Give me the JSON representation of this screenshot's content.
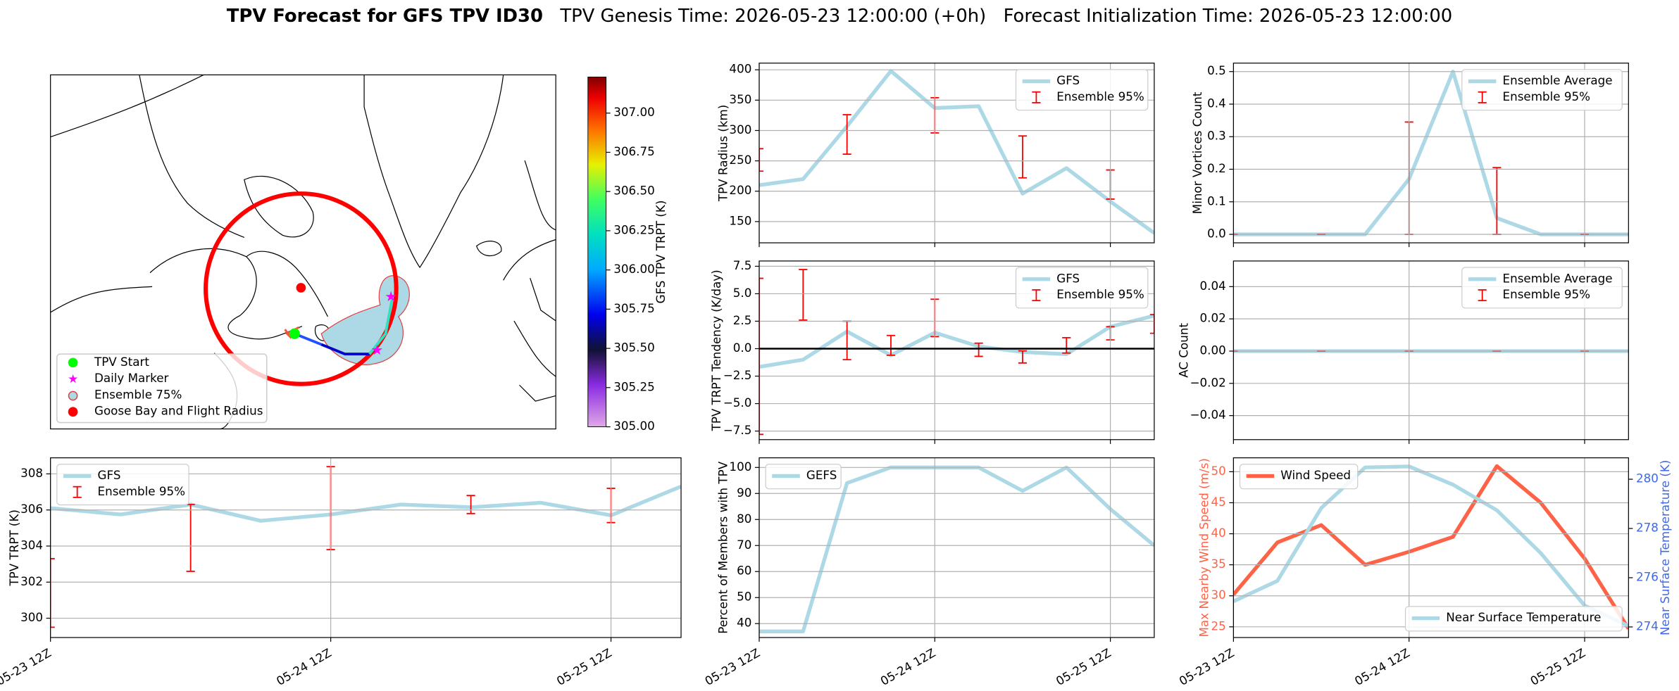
{
  "header": {
    "title": "TPV Forecast for GFS TPV ID30",
    "genesis": "TPV Genesis Time: 2026-05-23 12:00:00 (+0h)",
    "init": "Forecast Initialization Time: 2026-05-23 12:00:00"
  },
  "chart_data": [
    {
      "type": "map",
      "legend": [
        "TPV Start",
        "Daily Marker",
        "Ensemble 75%",
        "Goose Bay and Flight Radius"
      ],
      "colorbar": {
        "label": "GFS TPV TRPT (K)",
        "ylim": [
          305,
          307.23
        ],
        "yticks": [
          {
            "value": 305,
            "label": "305.00"
          },
          {
            "value": 305.25,
            "label": "305.25"
          },
          {
            "value": 305.5,
            "label": "305.50"
          },
          {
            "value": 305.75,
            "label": "305.75"
          },
          {
            "value": 306,
            "label": "306.00"
          },
          {
            "value": 306.25,
            "label": "306.25"
          },
          {
            "value": 306.5,
            "label": "306.50"
          },
          {
            "value": 306.75,
            "label": "306.75"
          },
          {
            "value": 307,
            "label": "307.00"
          }
        ]
      }
    },
    {
      "type": "line",
      "ylabel": "TPV TRPT (K)",
      "categories": [
        "05-23 12Z",
        null,
        null,
        null,
        "05-24 12Z",
        null,
        null,
        null,
        "05-25 12Z",
        null
      ],
      "series": [
        {
          "name": "GFS",
          "color": "#add8e6",
          "values": [
            306.1,
            305.75,
            306.3,
            305.4,
            305.75,
            306.3,
            306.15,
            306.4,
            305.7,
            307.3
          ]
        },
        {
          "name": "Ensemble 95%",
          "color": "#ff0000",
          "type": "errorbar",
          "lower": [
            299.5,
            null,
            302.6,
            null,
            303.8,
            null,
            305.8,
            null,
            305.3,
            null
          ],
          "upper": [
            303.3,
            null,
            306.3,
            null,
            308.4,
            null,
            306.8,
            null,
            307.2,
            null
          ]
        }
      ],
      "ylim": [
        298.93,
        308.89
      ],
      "yticks": [
        300,
        302,
        304,
        306,
        308
      ],
      "grid": true,
      "legend": "upper left"
    },
    {
      "type": "line",
      "ylabel": "TPV Radius (km)",
      "categories": [
        "05-23 12Z",
        null,
        null,
        null,
        "05-24 12Z",
        null,
        null,
        null,
        "05-25 12Z",
        null
      ],
      "series": [
        {
          "name": "GFS",
          "color": "#add8e6",
          "values": [
            210,
            220,
            307,
            398,
            337,
            340,
            196,
            238,
            183,
            131
          ]
        },
        {
          "name": "Ensemble 95%",
          "color": "#ff0000",
          "type": "errorbar",
          "lower": [
            233,
            null,
            261,
            null,
            296,
            null,
            222,
            null,
            187,
            null
          ],
          "upper": [
            270,
            null,
            326,
            null,
            354,
            null,
            291,
            null,
            235,
            null
          ]
        }
      ],
      "ylim": [
        115,
        411
      ],
      "yticks": [
        150,
        200,
        250,
        300,
        350,
        400
      ],
      "grid": true,
      "legend": "upper right"
    },
    {
      "type": "line",
      "ylabel": "TPV TRPT Tendency (K/day)",
      "categories": [
        "05-23 12Z",
        null,
        null,
        null,
        "05-24 12Z",
        null,
        null,
        null,
        "05-25 12Z",
        null
      ],
      "series": [
        {
          "name": "GFS",
          "color": "#add8e6",
          "values": [
            -1.66,
            -1.0,
            1.56,
            -0.6,
            1.46,
            0.2,
            -0.3,
            -0.5,
            2.0,
            3.0
          ]
        },
        {
          "name": "Ensemble 95%",
          "color": "#ff0000",
          "type": "errorbar",
          "lower": [
            -7.8,
            2.6,
            -1.0,
            -0.6,
            1.1,
            -0.7,
            -1.3,
            -0.4,
            0.8,
            1.4
          ],
          "upper": [
            6.4,
            7.2,
            2.5,
            1.2,
            4.5,
            0.5,
            -0.2,
            1.0,
            2.0,
            3.1
          ]
        }
      ],
      "hline": 0,
      "ylim": [
        -8.28,
        7.98
      ],
      "yticks": [
        {
          "value": -7.5,
          "label": "−7.5"
        },
        {
          "value": -5,
          "label": "−5.0"
        },
        {
          "value": -2.5,
          "label": "−2.5"
        },
        {
          "value": 0,
          "label": "0.0"
        },
        2.5,
        {
          "value": 5,
          "label": "5.0"
        },
        7.5
      ],
      "grid": true,
      "legend": "upper right"
    },
    {
      "type": "line",
      "ylabel": "Percent of Members with TPV",
      "categories": [
        "05-23 12Z",
        null,
        null,
        null,
        "05-24 12Z",
        null,
        null,
        null,
        "05-25 12Z",
        null
      ],
      "series": [
        {
          "name": "GEFS",
          "color": "#add8e6",
          "values": [
            37,
            37,
            94,
            100,
            100,
            100,
            91,
            100,
            84,
            70
          ]
        }
      ],
      "ylim": [
        34.65,
        103.7
      ],
      "yticks": [
        40,
        50,
        60,
        70,
        80,
        90,
        100
      ],
      "grid": true,
      "legend": "upper left"
    },
    {
      "type": "line",
      "ylabel": "Minor Vortices Count",
      "categories": [
        "05-23 12Z",
        null,
        null,
        null,
        "05-24 12Z",
        null,
        null,
        null,
        "05-25 12Z",
        null
      ],
      "series": [
        {
          "name": "Ensemble Average",
          "color": "#add8e6",
          "values": [
            0,
            0,
            0,
            0,
            0.17,
            0.5,
            0.05,
            0,
            0,
            0
          ]
        },
        {
          "name": "Ensemble 95%",
          "color": "#ff0000",
          "type": "errorbar",
          "lower": [
            0,
            null,
            0,
            null,
            0,
            null,
            0,
            null,
            0,
            null
          ],
          "upper": [
            0,
            null,
            0,
            null,
            0.345,
            null,
            0.205,
            null,
            0,
            null
          ]
        }
      ],
      "ylim": [
        -0.026,
        0.526
      ],
      "yticks": [
        {
          "value": 0,
          "label": "0.0"
        },
        0.1,
        0.2,
        0.3,
        0.4,
        0.5
      ],
      "grid": true,
      "legend": "upper right"
    },
    {
      "type": "line",
      "ylabel": "AC Count",
      "categories": [
        "05-23 12Z",
        null,
        null,
        null,
        "05-24 12Z",
        null,
        null,
        null,
        "05-25 12Z",
        null
      ],
      "series": [
        {
          "name": "Ensemble Average",
          "color": "#add8e6",
          "values": [
            0,
            0,
            0,
            0,
            0,
            0,
            0,
            0,
            0,
            0
          ]
        },
        {
          "name": "Ensemble 95%",
          "color": "#ff0000",
          "type": "errorbar",
          "lower": [
            0,
            null,
            0,
            null,
            0,
            null,
            0,
            null,
            0,
            null
          ],
          "upper": [
            0,
            null,
            0,
            null,
            0,
            null,
            0,
            null,
            0,
            null
          ]
        }
      ],
      "ylim": [
        -0.0549,
        0.0559
      ],
      "yticks": [
        {
          "value": -0.04,
          "label": "−0.04"
        },
        {
          "value": -0.02,
          "label": "−0.02"
        },
        {
          "value": 0,
          "label": "0.00"
        },
        0.02,
        0.04
      ],
      "grid": true,
      "legend": "upper right"
    },
    {
      "type": "line",
      "ylabel": "Max Nearby Wind Speed (m/s)",
      "y2label": "Near Surface Temperature (K)",
      "ycolor": "#ff6347",
      "y2color": "#4169e1",
      "categories": [
        "05-23 12Z",
        null,
        null,
        null,
        "05-24 12Z",
        null,
        null,
        null,
        "05-25 12Z",
        null
      ],
      "series": [
        {
          "name": "Wind Speed",
          "color": "#ff6347",
          "values": [
            30.2,
            38.6,
            41.4,
            35,
            37.1,
            39.5,
            50.9,
            45,
            36,
            24.7
          ]
        },
        {
          "name": "Near Surface Temperature",
          "color": "#add8e6",
          "axis": "y2",
          "values": [
            275.04,
            275.87,
            278.83,
            280.48,
            280.52,
            279.78,
            278.74,
            277,
            274.87,
            274.04
          ]
        }
      ],
      "ylim": [
        23.28,
        52.24
      ],
      "yticks": [
        25,
        30,
        35,
        40,
        45,
        50
      ],
      "y2lim": [
        273.57,
        280.87
      ],
      "y2ticks": [
        274,
        276,
        278,
        280
      ],
      "grid": true,
      "legend": "upper left",
      "legend2": "lower right"
    }
  ]
}
